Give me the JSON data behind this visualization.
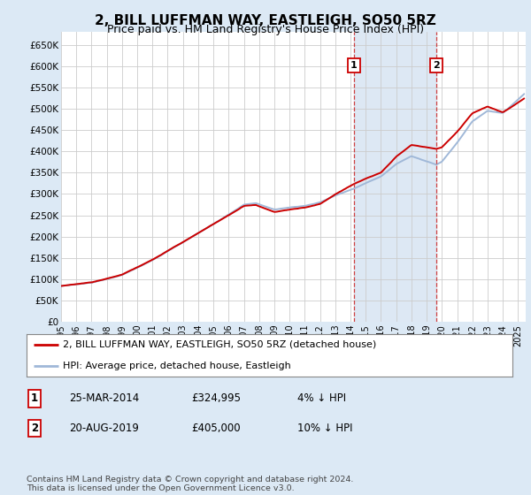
{
  "title": "2, BILL LUFFMAN WAY, EASTLEIGH, SO50 5RZ",
  "subtitle": "Price paid vs. HM Land Registry's House Price Index (HPI)",
  "title_fontsize": 11,
  "subtitle_fontsize": 9,
  "ylabel_ticks": [
    "£0",
    "£50K",
    "£100K",
    "£150K",
    "£200K",
    "£250K",
    "£300K",
    "£350K",
    "£400K",
    "£450K",
    "£500K",
    "£550K",
    "£600K",
    "£650K"
  ],
  "ytick_values": [
    0,
    50000,
    100000,
    150000,
    200000,
    250000,
    300000,
    350000,
    400000,
    450000,
    500000,
    550000,
    600000,
    650000
  ],
  "xlim_start": 1995.0,
  "xlim_end": 2025.5,
  "ylim_min": 0,
  "ylim_max": 680000,
  "hpi_color": "#a0b8d8",
  "price_color": "#cc0000",
  "outer_bg_color": "#dce9f5",
  "plot_bg_color": "#ffffff",
  "grid_color": "#cccccc",
  "vline_color": "#cc2222",
  "span_color": "#dde8f4",
  "marker1_year": 2014.22,
  "marker1_value": 324995,
  "marker1_label": "1",
  "marker1_date": "25-MAR-2014",
  "marker1_price": "£324,995",
  "marker1_hpi": "4% ↓ HPI",
  "marker2_year": 2019.63,
  "marker2_value": 405000,
  "marker2_label": "2",
  "marker2_date": "20-AUG-2019",
  "marker2_price": "£405,000",
  "marker2_hpi": "10% ↓ HPI",
  "legend_label1": "2, BILL LUFFMAN WAY, EASTLEIGH, SO50 5RZ (detached house)",
  "legend_label2": "HPI: Average price, detached house, Eastleigh",
  "footer": "Contains HM Land Registry data © Crown copyright and database right 2024.\nThis data is licensed under the Open Government Licence v3.0.",
  "xtick_years": [
    1995,
    1996,
    1997,
    1998,
    1999,
    2000,
    2001,
    2002,
    2003,
    2004,
    2005,
    2006,
    2007,
    2008,
    2009,
    2010,
    2011,
    2012,
    2013,
    2014,
    2015,
    2016,
    2017,
    2018,
    2019,
    2020,
    2021,
    2022,
    2023,
    2024,
    2025
  ]
}
